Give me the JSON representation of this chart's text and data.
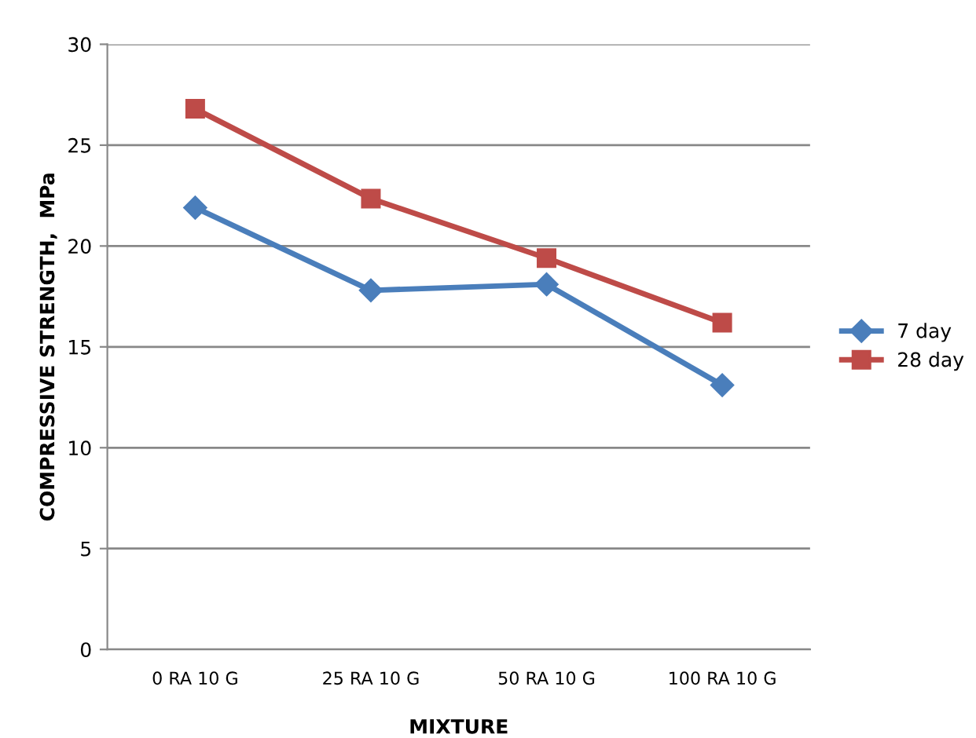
{
  "chart_data": {
    "type": "line",
    "xlabel": "MIXTURE",
    "ylabel": "COMPRESSIVE STRENGTH,  MPa",
    "categories": [
      "0 RA 10 G",
      "25 RA 10 G",
      "50 RA 10 G",
      "100 RA 10 G"
    ],
    "series": [
      {
        "name": "7 day",
        "color": "#4a7ebb",
        "marker": "diamond",
        "values": [
          21.9,
          17.8,
          18.1,
          13.1
        ]
      },
      {
        "name": "28 day",
        "color": "#be4b48",
        "marker": "square",
        "values": [
          26.8,
          22.35,
          19.4,
          16.2
        ]
      }
    ],
    "ylim": [
      0,
      30
    ],
    "yticks": [
      0,
      5,
      10,
      15,
      20,
      25,
      30
    ],
    "grid": "y",
    "legend": "right",
    "line_style": "solid"
  }
}
